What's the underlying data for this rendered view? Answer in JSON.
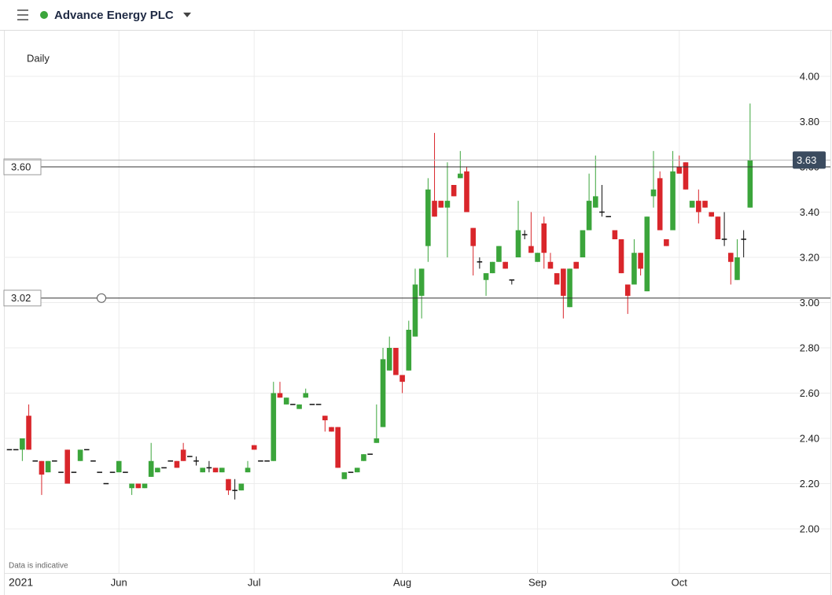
{
  "header": {
    "title": "Advance Energy PLC"
  },
  "chart_data": {
    "type": "candlestick",
    "interval": "Daily",
    "note": "Data is indicative",
    "categories": [
      "2021",
      null,
      null,
      null,
      null,
      null,
      null,
      null,
      null,
      null,
      null,
      null,
      null,
      null,
      null,
      null,
      null,
      "Jun",
      null,
      null,
      null,
      null,
      null,
      null,
      null,
      null,
      null,
      null,
      null,
      null,
      null,
      null,
      null,
      null,
      null,
      null,
      null,
      null,
      "Jul",
      null,
      null,
      null,
      null,
      null,
      null,
      null,
      null,
      null,
      null,
      null,
      null,
      null,
      null,
      null,
      null,
      null,
      null,
      null,
      null,
      null,
      null,
      "Aug",
      null,
      null,
      null,
      null,
      null,
      null,
      null,
      null,
      null,
      null,
      null,
      null,
      null,
      null,
      null,
      null,
      null,
      null,
      null,
      null,
      "Sep",
      null,
      null,
      null,
      null,
      null,
      null,
      null,
      null,
      null,
      null,
      null,
      null,
      null,
      null,
      null,
      null,
      null,
      null,
      null,
      null,
      null,
      "Oct",
      null,
      null,
      null,
      null,
      null,
      null,
      null,
      null,
      null,
      null,
      null
    ],
    "open": [
      2.35,
      2.35,
      2.35,
      2.5,
      2.3,
      2.3,
      2.25,
      2.3,
      2.25,
      2.35,
      2.25,
      2.3,
      2.35,
      2.3,
      2.25,
      2.2,
      2.25,
      2.25,
      2.25,
      2.18,
      2.2,
      2.18,
      2.23,
      2.25,
      2.27,
      2.3,
      2.3,
      2.35,
      2.32,
      2.3,
      2.25,
      2.27,
      2.27,
      2.25,
      2.22,
      2.17,
      2.17,
      2.25,
      2.37,
      2.3,
      2.3,
      2.3,
      2.6,
      2.55,
      2.55,
      2.53,
      2.58,
      2.55,
      2.55,
      2.5,
      2.45,
      2.45,
      2.22,
      2.25,
      2.25,
      2.3,
      2.33,
      2.38,
      2.45,
      2.7,
      2.8,
      2.68,
      2.7,
      2.85,
      3.03,
      3.25,
      3.45,
      3.45,
      3.42,
      3.52,
      3.55,
      3.58,
      3.33,
      3.18,
      3.1,
      3.13,
      3.18,
      3.18,
      3.1,
      3.2,
      3.3,
      3.25,
      3.18,
      3.35,
      3.18,
      3.13,
      3.15,
      2.98,
      3.18,
      3.2,
      3.32,
      3.42,
      3.4,
      3.38,
      3.32,
      3.28,
      3.08,
      3.08,
      3.22,
      3.05,
      3.47,
      3.55,
      3.28,
      3.32,
      3.6,
      3.62,
      3.42,
      3.45,
      3.45,
      3.4,
      3.38,
      3.28,
      3.22,
      3.1,
      3.28,
      3.42
    ],
    "high": [
      2.35,
      2.35,
      2.4,
      2.55,
      2.3,
      2.3,
      2.3,
      2.3,
      2.25,
      2.35,
      2.25,
      2.35,
      2.35,
      2.3,
      2.25,
      2.2,
      2.25,
      2.3,
      2.25,
      2.2,
      2.2,
      2.2,
      2.38,
      2.27,
      2.27,
      2.3,
      2.3,
      2.38,
      2.32,
      2.32,
      2.27,
      2.3,
      2.27,
      2.27,
      2.22,
      2.22,
      2.2,
      2.3,
      2.37,
      2.3,
      2.3,
      2.65,
      2.65,
      2.58,
      2.55,
      2.55,
      2.62,
      2.55,
      2.55,
      2.5,
      2.45,
      2.45,
      2.25,
      2.25,
      2.27,
      2.33,
      2.33,
      2.55,
      2.8,
      2.85,
      2.8,
      2.68,
      2.92,
      3.15,
      3.15,
      3.55,
      3.75,
      3.45,
      3.62,
      3.52,
      3.67,
      3.6,
      3.33,
      3.2,
      3.13,
      3.18,
      3.25,
      3.18,
      3.1,
      3.45,
      3.32,
      3.4,
      3.22,
      3.38,
      3.22,
      3.13,
      3.15,
      3.15,
      3.18,
      3.32,
      3.57,
      3.65,
      3.52,
      3.38,
      3.32,
      3.28,
      3.08,
      3.28,
      3.22,
      3.38,
      3.67,
      3.58,
      3.28,
      3.67,
      3.65,
      3.62,
      3.45,
      3.5,
      3.45,
      3.4,
      3.38,
      3.4,
      3.22,
      3.28,
      3.32,
      3.88
    ],
    "low": [
      2.35,
      2.35,
      2.3,
      2.35,
      2.3,
      2.15,
      2.25,
      2.3,
      2.25,
      2.2,
      2.25,
      2.3,
      2.35,
      2.3,
      2.25,
      2.2,
      2.25,
      2.25,
      2.25,
      2.15,
      2.18,
      2.18,
      2.23,
      2.25,
      2.27,
      2.3,
      2.27,
      2.3,
      2.32,
      2.28,
      2.25,
      2.25,
      2.25,
      2.25,
      2.15,
      2.13,
      2.17,
      2.25,
      2.35,
      2.3,
      2.3,
      2.3,
      2.58,
      2.55,
      2.55,
      2.53,
      2.58,
      2.55,
      2.55,
      2.43,
      2.43,
      2.27,
      2.22,
      2.25,
      2.25,
      2.3,
      2.33,
      2.38,
      2.45,
      2.7,
      2.68,
      2.6,
      2.7,
      2.85,
      2.93,
      3.18,
      3.38,
      3.42,
      3.2,
      3.47,
      3.55,
      3.4,
      3.12,
      3.15,
      3.03,
      3.13,
      3.18,
      3.15,
      3.08,
      3.2,
      3.28,
      3.22,
      3.18,
      3.15,
      3.15,
      3.08,
      2.93,
      2.98,
      3.15,
      3.2,
      3.32,
      3.42,
      3.38,
      3.38,
      3.28,
      3.13,
      2.95,
      3.08,
      3.12,
      3.05,
      3.42,
      3.32,
      3.25,
      3.32,
      3.57,
      3.5,
      3.42,
      3.35,
      3.42,
      3.38,
      3.28,
      3.25,
      3.08,
      3.1,
      3.2,
      3.42
    ],
    "close": [
      2.35,
      2.35,
      2.4,
      2.35,
      2.3,
      2.24,
      2.3,
      2.3,
      2.25,
      2.2,
      2.25,
      2.35,
      2.35,
      2.3,
      2.25,
      2.2,
      2.25,
      2.3,
      2.25,
      2.2,
      2.18,
      2.2,
      2.3,
      2.27,
      2.27,
      2.3,
      2.27,
      2.3,
      2.32,
      2.3,
      2.27,
      2.27,
      2.25,
      2.27,
      2.17,
      2.17,
      2.2,
      2.27,
      2.35,
      2.3,
      2.3,
      2.6,
      2.58,
      2.58,
      2.55,
      2.55,
      2.6,
      2.55,
      2.55,
      2.48,
      2.43,
      2.27,
      2.25,
      2.25,
      2.27,
      2.33,
      2.33,
      2.4,
      2.75,
      2.8,
      2.68,
      2.65,
      2.88,
      3.08,
      3.15,
      3.5,
      3.38,
      3.42,
      3.45,
      3.47,
      3.57,
      3.4,
      3.25,
      3.18,
      3.13,
      3.18,
      3.25,
      3.15,
      3.1,
      3.32,
      3.3,
      3.22,
      3.22,
      3.22,
      3.15,
      3.08,
      3.03,
      3.15,
      3.15,
      3.32,
      3.45,
      3.47,
      3.4,
      3.38,
      3.28,
      3.13,
      3.03,
      3.22,
      3.15,
      3.38,
      3.5,
      3.32,
      3.25,
      3.58,
      3.57,
      3.5,
      3.45,
      3.4,
      3.42,
      3.38,
      3.28,
      3.28,
      3.18,
      3.2,
      3.28,
      3.63
    ],
    "up_color": "#3ba53b",
    "down_color": "#d9262b",
    "ylim": [
      1.8,
      4.2
    ],
    "yticks": [
      {
        "value": 2,
        "label": "2.00"
      },
      {
        "value": 2.2,
        "label": "2.20"
      },
      {
        "value": 2.4,
        "label": "2.40"
      },
      {
        "value": 2.6,
        "label": "2.60"
      },
      {
        "value": 2.8,
        "label": "2.80"
      },
      {
        "value": 3,
        "label": "3.00"
      },
      {
        "value": 3.2,
        "label": "3.20"
      },
      {
        "value": 3.4,
        "label": "3.40"
      },
      {
        "value": 3.6,
        "label": "3.60"
      },
      {
        "value": 3.8,
        "label": "3.80"
      },
      {
        "value": 4,
        "label": "4.00"
      }
    ],
    "grid": true,
    "price_lines": [
      {
        "value": 3.6,
        "label": "3.60"
      },
      {
        "value": 3.02,
        "label": "3.02"
      }
    ],
    "last_price": {
      "value": 3.63,
      "label": "3.63"
    }
  }
}
